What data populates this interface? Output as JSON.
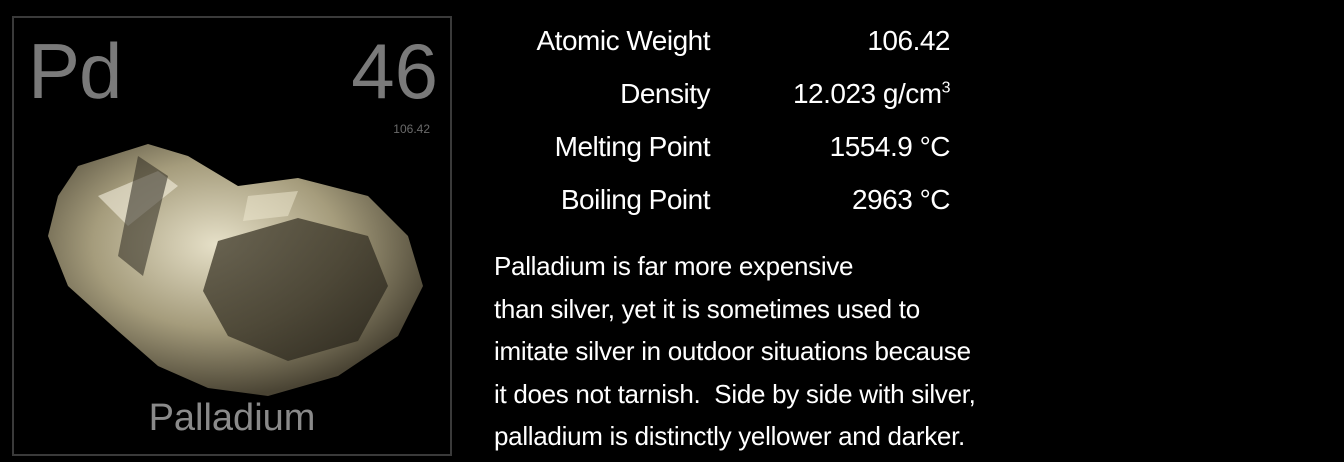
{
  "tile": {
    "symbol": "Pd",
    "atomic_number": "46",
    "atomic_weight": "106.42",
    "name": "Palladium"
  },
  "properties": [
    {
      "label": "Atomic Weight",
      "value": "106.42",
      "unit": "",
      "sup": ""
    },
    {
      "label": "Density",
      "value": "12.023 g/cm",
      "unit": "",
      "sup": "3"
    },
    {
      "label": "Melting Point",
      "value": "1554.9",
      "unit": " °C",
      "sup": ""
    },
    {
      "label": "Boiling Point",
      "value": "2963",
      "unit": " °C",
      "sup": ""
    }
  ],
  "description": [
    "Palladium is far more expensive",
    "than silver, yet it is sometimes used to",
    "imitate silver in outdoor situations because",
    "it does not tarnish.  Side by side with silver,",
    "palladium is distinctly yellower and darker."
  ],
  "colors": {
    "background": "#000000",
    "tile_text": "#7a7a7a",
    "specimen": "#a9a183"
  }
}
